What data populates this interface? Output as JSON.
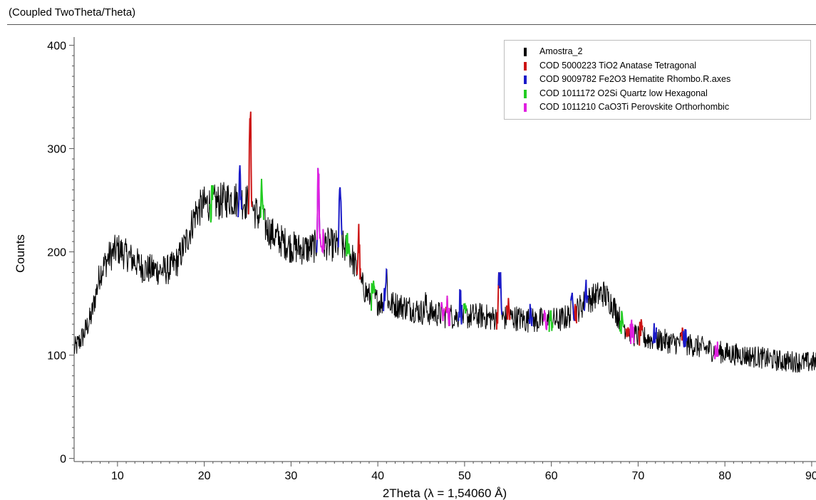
{
  "header": {
    "title": "(Coupled TwoTheta/Theta)"
  },
  "chart_data": {
    "type": "line",
    "title": "",
    "xlabel": "2Theta (λ = 1,54060 Å)",
    "ylabel": "Counts",
    "xlim": [
      5,
      90.5
    ],
    "ylim": [
      -3,
      408
    ],
    "xticks": [
      10,
      20,
      30,
      40,
      50,
      60,
      70,
      80,
      90
    ],
    "yticks": [
      0,
      100,
      200,
      300,
      400
    ],
    "grid": false,
    "legend_position": "top-right",
    "series": [
      {
        "name": "Amostra_2",
        "color": "#000000",
        "profile": [
          [
            5,
            105
          ],
          [
            6,
            118
          ],
          [
            7,
            138
          ],
          [
            8,
            180
          ],
          [
            9,
            195
          ],
          [
            10,
            203
          ],
          [
            11,
            197
          ],
          [
            12,
            191
          ],
          [
            13,
            184
          ],
          [
            14,
            183
          ],
          [
            15,
            182
          ],
          [
            16,
            183
          ],
          [
            17,
            192
          ],
          [
            18,
            212
          ],
          [
            19,
            238
          ],
          [
            20,
            246
          ],
          [
            21,
            247
          ],
          [
            22,
            249
          ],
          [
            23,
            252
          ],
          [
            24,
            250
          ],
          [
            25,
            248
          ],
          [
            26,
            238
          ],
          [
            27,
            225
          ],
          [
            28,
            216
          ],
          [
            29,
            210
          ],
          [
            30,
            205
          ],
          [
            31,
            203
          ],
          [
            32,
            203
          ],
          [
            33,
            206
          ],
          [
            34,
            208
          ],
          [
            35,
            206
          ],
          [
            36,
            205
          ],
          [
            37,
            196
          ],
          [
            38,
            170
          ],
          [
            39,
            157
          ],
          [
            40,
            152
          ],
          [
            41,
            150
          ],
          [
            42,
            149
          ],
          [
            43,
            147
          ],
          [
            44,
            145
          ],
          [
            45,
            142
          ],
          [
            46,
            141
          ],
          [
            47,
            140
          ],
          [
            48,
            138
          ],
          [
            49,
            138
          ],
          [
            50,
            137
          ],
          [
            51,
            138
          ],
          [
            52,
            138
          ],
          [
            53,
            136
          ],
          [
            54,
            136
          ],
          [
            55,
            136
          ],
          [
            56,
            136
          ],
          [
            57,
            134
          ],
          [
            58,
            133
          ],
          [
            59,
            134
          ],
          [
            60,
            134
          ],
          [
            61,
            134
          ],
          [
            62,
            138
          ],
          [
            63,
            144
          ],
          [
            64,
            152
          ],
          [
            65,
            157
          ],
          [
            66,
            160
          ],
          [
            67,
            150
          ],
          [
            68,
            133
          ],
          [
            69,
            122
          ],
          [
            70,
            118
          ],
          [
            71,
            116
          ],
          [
            72,
            115
          ],
          [
            73,
            114
          ],
          [
            74,
            112
          ],
          [
            75,
            112
          ],
          [
            76,
            110
          ],
          [
            77,
            108
          ],
          [
            78,
            106
          ],
          [
            79,
            104
          ],
          [
            80,
            102
          ],
          [
            81,
            101
          ],
          [
            82,
            100
          ],
          [
            83,
            99
          ],
          [
            84,
            98
          ],
          [
            85,
            96
          ],
          [
            86,
            95
          ],
          [
            87,
            94
          ],
          [
            88,
            94
          ],
          [
            89,
            93
          ],
          [
            90,
            93
          ]
        ],
        "peaks": [
          [
            25.3,
            333
          ],
          [
            33.15,
            280
          ],
          [
            35.65,
            266
          ],
          [
            54.0,
            178
          ],
          [
            45.5,
            152
          ],
          [
            41.0,
            183
          ]
        ]
      },
      {
        "name": "COD 5000223 TiO2 Anatase Tetragonal",
        "color": "#cc1414",
        "marks": [
          [
            25.3,
            333
          ],
          [
            37.8,
            217
          ],
          [
            48.05,
            148
          ],
          [
            53.9,
            150
          ],
          [
            55.05,
            148
          ],
          [
            62.7,
            141
          ],
          [
            68.8,
            128
          ],
          [
            70.3,
            124
          ],
          [
            75.1,
            120
          ]
        ]
      },
      {
        "name": "COD 9009782 Fe2O3 Hematite Rhombo.R.axes",
        "color": "#1a1ac8",
        "marks": [
          [
            24.1,
            272
          ],
          [
            33.15,
            280
          ],
          [
            35.65,
            266
          ],
          [
            40.85,
            168
          ],
          [
            49.5,
            157
          ],
          [
            54.1,
            178
          ],
          [
            57.6,
            152
          ],
          [
            62.45,
            163
          ],
          [
            64.0,
            168
          ],
          [
            71.9,
            121
          ],
          [
            75.4,
            116
          ]
        ]
      },
      {
        "name": "COD 1011172 O2Si Quartz low Hexagonal",
        "color": "#22cc22",
        "marks": [
          [
            26.65,
            259
          ],
          [
            20.85,
            245
          ],
          [
            36.55,
            212
          ],
          [
            39.45,
            162
          ],
          [
            50.1,
            138
          ],
          [
            59.95,
            131
          ],
          [
            68.1,
            128
          ]
        ]
      },
      {
        "name": "COD 1011210 CaO3Ti Perovskite Orthorhombic",
        "color": "#e020e0",
        "marks": [
          [
            33.2,
            210
          ],
          [
            33.6,
            208
          ],
          [
            47.5,
            140
          ],
          [
            48.1,
            138
          ],
          [
            59.3,
            128
          ],
          [
            69.3,
            123
          ],
          [
            79.0,
            104
          ]
        ]
      }
    ]
  }
}
